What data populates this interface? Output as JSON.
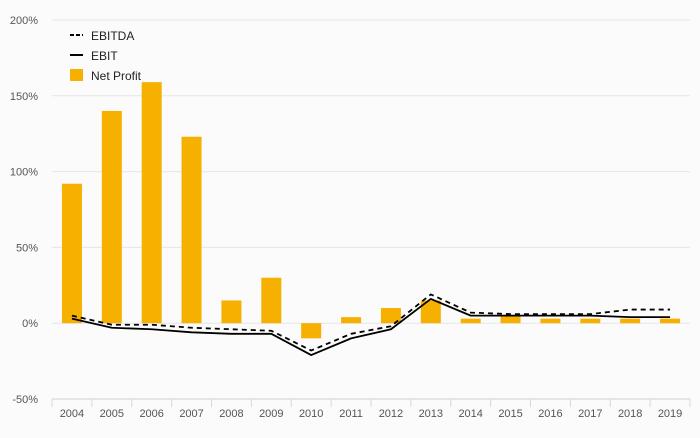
{
  "chart_data": {
    "type": "bar",
    "title": "",
    "xlabel": "",
    "ylabel": "",
    "categories": [
      "2004",
      "2005",
      "2006",
      "2007",
      "2008",
      "2009",
      "2010",
      "2011",
      "2012",
      "2013",
      "2014",
      "2015",
      "2016",
      "2017",
      "2018",
      "2019"
    ],
    "ylim": [
      -50,
      200
    ],
    "yticks": [
      -50,
      0,
      50,
      100,
      150,
      200
    ],
    "ytick_labels": [
      "-50%",
      "0%",
      "50%",
      "100%",
      "150%",
      "200%"
    ],
    "grid": true,
    "legend_position": "top-left",
    "series": [
      {
        "name": "EBITDA",
        "kind": "line",
        "style": "dashed",
        "color": "#000000",
        "values": [
          5,
          -1,
          -1,
          -3,
          -4,
          -5,
          -18,
          -7,
          -2,
          19,
          7,
          6,
          6,
          6,
          9,
          9
        ]
      },
      {
        "name": "EBIT",
        "kind": "line",
        "style": "solid",
        "color": "#000000",
        "values": [
          3,
          -3,
          -4,
          -6,
          -7,
          -7,
          -21,
          -10,
          -4,
          16,
          5,
          5,
          5,
          5,
          4,
          4
        ]
      },
      {
        "name": "Net Profit",
        "kind": "bar",
        "color": "#f5b000",
        "values": [
          92,
          140,
          159,
          123,
          15,
          30,
          -10,
          4,
          10,
          15,
          3,
          5,
          3,
          3,
          3,
          3
        ]
      }
    ]
  }
}
